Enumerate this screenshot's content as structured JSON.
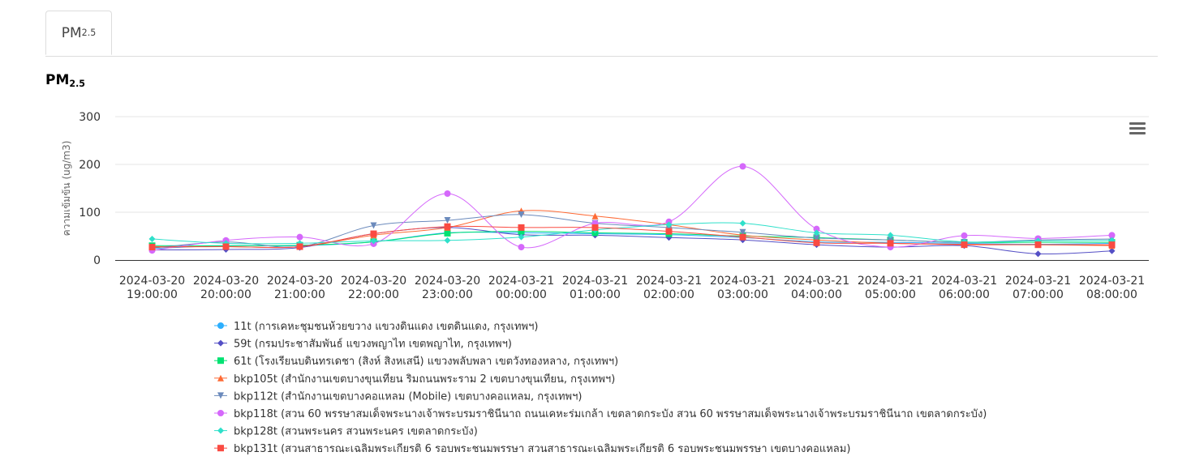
{
  "tabs": [
    {
      "label_main": "PM",
      "label_sub": "2.5"
    }
  ],
  "chart_title": {
    "main": "PM",
    "sub": "2.5"
  },
  "colors": {
    "grid": "#e6e6e6",
    "axis": "#333333"
  },
  "chart_data": {
    "type": "line",
    "title": "PM2.5",
    "xlabel": "",
    "ylabel": "ความเข้มข้น (ug/m3)",
    "ylim": [
      0,
      300
    ],
    "yticks": [
      0,
      100,
      200,
      300
    ],
    "grid": true,
    "legend_position": "bottom",
    "categories": [
      [
        "2024-03-20",
        "19:00:00"
      ],
      [
        "2024-03-20",
        "20:00:00"
      ],
      [
        "2024-03-20",
        "21:00:00"
      ],
      [
        "2024-03-20",
        "22:00:00"
      ],
      [
        "2024-03-20",
        "23:00:00"
      ],
      [
        "2024-03-21",
        "00:00:00"
      ],
      [
        "2024-03-21",
        "01:00:00"
      ],
      [
        "2024-03-21",
        "02:00:00"
      ],
      [
        "2024-03-21",
        "03:00:00"
      ],
      [
        "2024-03-21",
        "04:00:00"
      ],
      [
        "2024-03-21",
        "05:00:00"
      ],
      [
        "2024-03-21",
        "06:00:00"
      ],
      [
        "2024-03-21",
        "07:00:00"
      ],
      [
        "2024-03-21",
        "08:00:00"
      ]
    ],
    "series": [
      {
        "name": "11t (การเคหะชุมชนห้วยขวาง แขวงดินแดง เขตดินแดง, กรุงเทพฯ)",
        "color": "#2caffe",
        "marker": "circle",
        "values": [
          24,
          30,
          30,
          38,
          57,
          57,
          55,
          53,
          47,
          38,
          37,
          35,
          33,
          35
        ]
      },
      {
        "name": "59t (กรมประชาสัมพันธ์ แขวงพญาไท เขตพญาไท, กรุงเทพฯ)",
        "color": "#544fc5",
        "marker": "diamond",
        "values": [
          21,
          22,
          26,
          55,
          68,
          53,
          52,
          47,
          42,
          32,
          27,
          30,
          13,
          19
        ]
      },
      {
        "name": "61t (โรงเรียนบดินทรเดชา (สิงห์ สิงหเสนี) แขวงพลับพลา เขตวังทองหลาง, กรุงเทพฯ)",
        "color": "#00e272",
        "marker": "square",
        "values": [
          30,
          30,
          31,
          38,
          56,
          60,
          57,
          55,
          50,
          47,
          42,
          37,
          37,
          37
        ]
      },
      {
        "name": "bkp105t (สำนักงานเขตบางขุนเทียน ริมถนนพระราม 2 เขตบางขุนเทียน, กรุงเทพฯ)",
        "color": "#fe6a35",
        "marker": "triangle",
        "values": [
          28,
          28,
          28,
          52,
          68,
          103,
          92,
          74,
          52,
          42,
          35,
          33,
          32,
          30
        ]
      },
      {
        "name": "bkp112t (สำนักงานเขตบางคอแหลม (Mobile) เขตบางคอแหลม, กรุงเทพฯ)",
        "color": "#6b8abc",
        "marker": "triangle-down",
        "values": [
          25,
          38,
          28,
          72,
          83,
          95,
          77,
          68,
          58,
          46,
          42,
          37,
          42,
          44
        ]
      },
      {
        "name": "bkp118t (สวน 60 พรรษาสมเด็จพระนางเจ้าพระบรมราชินีนาถ ถนนเคหะร่มเกล้า เขตลาดกระบัง สวน 60 พรรษาสมเด็จพระนางเจ้าพระบรมราชินีนาถ เขตลาดกระบัง)",
        "color": "#d568fb",
        "marker": "circle",
        "values": [
          20,
          41,
          48,
          34,
          139,
          27,
          77,
          80,
          196,
          65,
          27,
          51,
          45,
          52
        ]
      },
      {
        "name": "bkp128t (สวนพระนคร สวนพระนคร เขตลาดกระบัง)",
        "color": "#2ee0ca",
        "marker": "diamond",
        "values": [
          44,
          35,
          35,
          40,
          41,
          48,
          63,
          74,
          77,
          57,
          52,
          38,
          40,
          41
        ]
      },
      {
        "name": "bkp131t (สวนสาธารณะเฉลิมพระเกียรติ 6 รอบพระชนมพรรษา สวนสาธารณะเฉลิมพระเกียรติ 6 รอบพระชนมพรรษา เขตบางคอแหลม)",
        "color": "#fa4b42",
        "marker": "square",
        "values": [
          27,
          28,
          28,
          55,
          70,
          68,
          68,
          60,
          48,
          36,
          35,
          32,
          32,
          32
        ]
      }
    ]
  }
}
